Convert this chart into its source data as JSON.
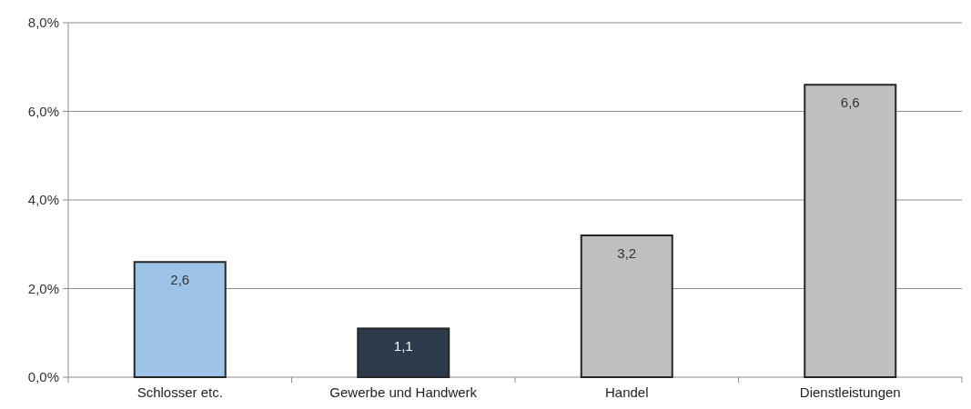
{
  "chart_data": {
    "type": "bar",
    "categories": [
      "Schlosser etc.",
      "Gewerbe und Handwerk",
      "Handel",
      "Dienstleistungen"
    ],
    "values": [
      2.6,
      1.1,
      3.2,
      6.6
    ],
    "colors": [
      "#9dc3e6",
      "#2d3a4c",
      "#bfbfbf",
      "#bfbfbf"
    ],
    "value_labels": [
      "2,6",
      "1,1",
      "3,2",
      "6,6"
    ],
    "ylim": [
      0,
      8
    ],
    "yticks": [
      {
        "value": 0,
        "label": "0,0%"
      },
      {
        "value": 2,
        "label": "2,0%"
      },
      {
        "value": 4,
        "label": "4,0%"
      },
      {
        "value": 6,
        "label": "6,0%"
      },
      {
        "value": 8,
        "label": "8,0%"
      }
    ],
    "grid": "y"
  }
}
